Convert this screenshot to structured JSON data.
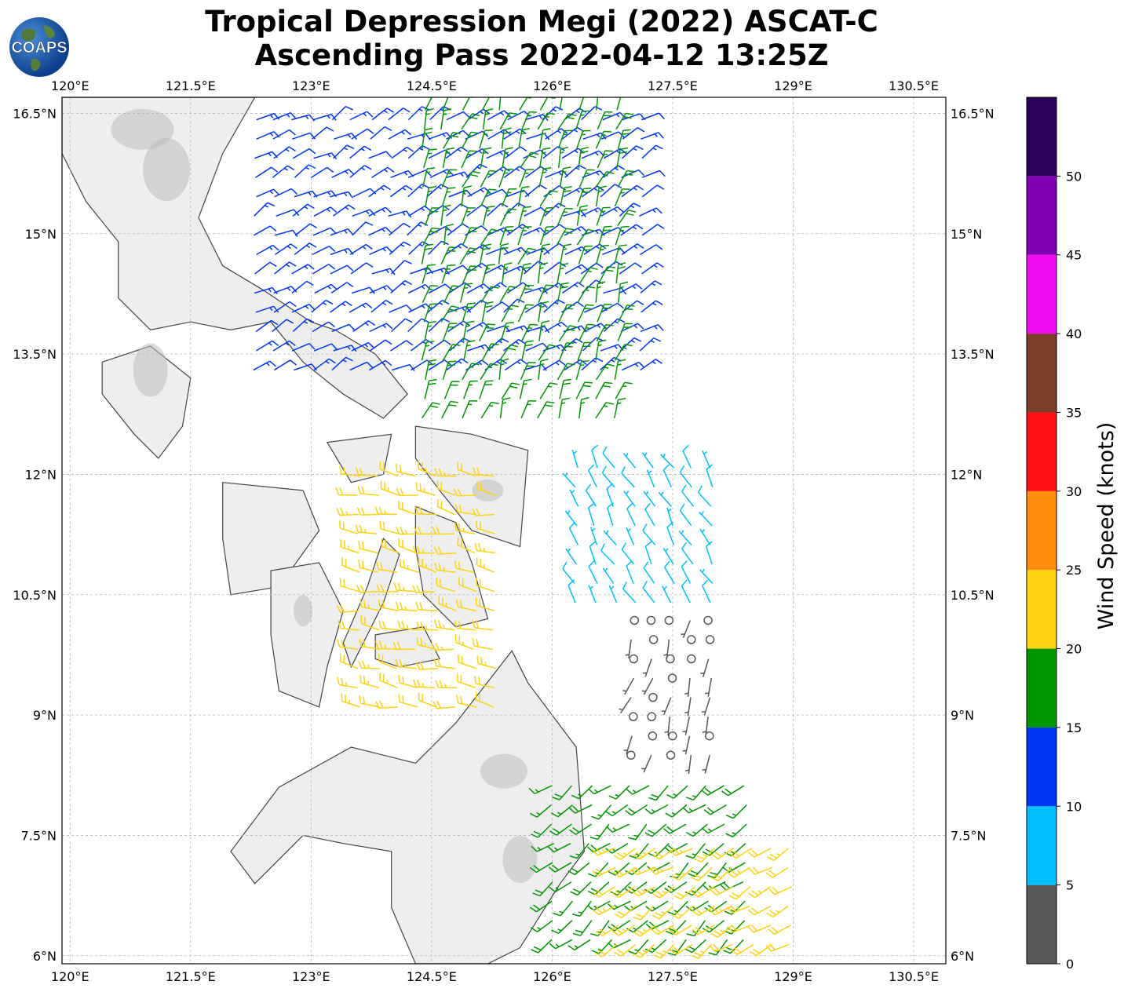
{
  "title": {
    "line1": "Tropical Depression Megi (2022) ASCAT-C",
    "line2": "Ascending Pass 2022-04-12 13:25Z"
  },
  "logo": {
    "text": "COAPS",
    "icon": "globe-icon"
  },
  "map": {
    "projection": "PlateCarree",
    "lon_range": [
      119.9,
      130.9
    ],
    "lat_range": [
      5.9,
      16.7
    ],
    "lon_ticks": [
      "120°E",
      "121.5°E",
      "123°E",
      "124.5°E",
      "126°E",
      "127.5°E",
      "129°E",
      "130.5°E"
    ],
    "lat_ticks": [
      "6°N",
      "7.5°N",
      "9°N",
      "10.5°N",
      "12°N",
      "13.5°N",
      "15°N",
      "16.5°N"
    ],
    "gridlines": true,
    "background": "grayscale terrain over land, white ocean, dark gray coastlines"
  },
  "colorbar": {
    "label": "Wind Speed (knots)",
    "ticks": [
      "0",
      "5",
      "10",
      "15",
      "20",
      "25",
      "30",
      "35",
      "40",
      "45",
      "50"
    ],
    "bins": [
      {
        "min": 0,
        "max": 5,
        "color": "#575757"
      },
      {
        "min": 5,
        "max": 10,
        "color": "#00bfff"
      },
      {
        "min": 10,
        "max": 15,
        "color": "#0035f5"
      },
      {
        "min": 15,
        "max": 20,
        "color": "#009600"
      },
      {
        "min": 20,
        "max": 25,
        "color": "#ffd20f"
      },
      {
        "min": 25,
        "max": 30,
        "color": "#ff8c0a"
      },
      {
        "min": 30,
        "max": 35,
        "color": "#ff1010"
      },
      {
        "min": 35,
        "max": 40,
        "color": "#7d3c28"
      },
      {
        "min": 40,
        "max": 45,
        "color": "#f00cf0"
      },
      {
        "min": 45,
        "max": 50,
        "color": "#8200b4"
      },
      {
        "min": 50,
        "max": 55,
        "color": "#2d0059"
      }
    ]
  },
  "wind_regions": [
    {
      "name": "north-swath",
      "lon": [
        122.3,
        127.2
      ],
      "lat": [
        13.3,
        16.6
      ],
      "speed_kt": 13,
      "dir_deg": 60
    },
    {
      "name": "north-swath-green",
      "lon": [
        124.4,
        127.0
      ],
      "lat": [
        12.7,
        16.6
      ],
      "speed_kt": 17,
      "dir_deg": 20
    },
    {
      "name": "east-ring",
      "lon": [
        126.3,
        128.0
      ],
      "lat": [
        10.4,
        12.3
      ],
      "speed_kt": 8,
      "dir_deg": 330
    },
    {
      "name": "center-calm",
      "lon": [
        127.0,
        128.0
      ],
      "lat": [
        8.5,
        10.2
      ],
      "speed_kt": 3,
      "dir_deg": 200
    },
    {
      "name": "southeast-green",
      "lon": [
        126.0,
        128.6
      ],
      "lat": [
        6.2,
        8.2
      ],
      "speed_kt": 17,
      "dir_deg": 230
    },
    {
      "name": "southeast-yellow",
      "lon": [
        126.8,
        129.0
      ],
      "lat": [
        5.9,
        7.4
      ],
      "speed_kt": 22,
      "dir_deg": 235
    },
    {
      "name": "leyte-gulf-yellow",
      "lon": [
        123.6,
        125.4
      ],
      "lat": [
        9.1,
        12.0
      ],
      "speed_kt": 22,
      "dir_deg": 280
    }
  ]
}
